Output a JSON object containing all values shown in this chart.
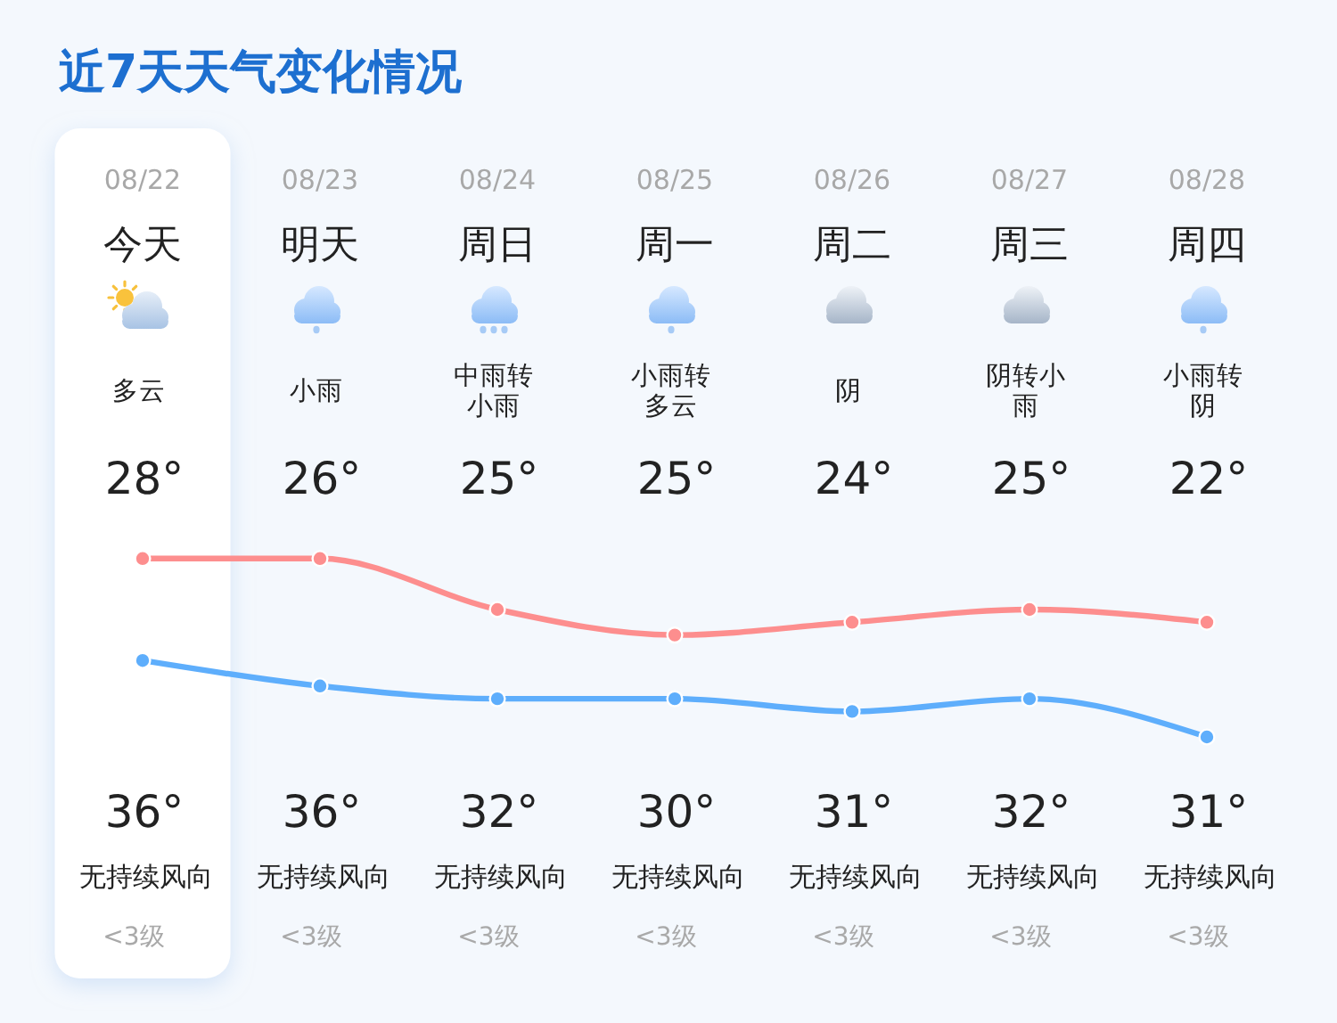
{
  "chart_data": {
    "type": "line",
    "title": "近7天天气变化情况",
    "categories": [
      "08/22",
      "08/23",
      "08/24",
      "08/25",
      "08/26",
      "08/27",
      "08/28"
    ],
    "series": [
      {
        "color": "#5eaefc",
        "values": [
          28,
          26,
          25,
          25,
          24,
          25,
          22
        ],
        "value_labels": [
          "28°",
          "26°",
          "25°",
          "25°",
          "24°",
          "25°",
          "22°"
        ]
      },
      {
        "color": "#fd8e8e",
        "values": [
          36,
          36,
          32,
          30,
          31,
          32,
          31
        ],
        "value_labels": [
          "36°",
          "36°",
          "32°",
          "30°",
          "31°",
          "32°",
          "31°"
        ]
      }
    ],
    "tick_labels": "x",
    "marker": "circle",
    "line_style": "solid",
    "bands": [
      {
        "axis": "x",
        "from": "08/22",
        "to": "08/22",
        "color": "#ffffff"
      }
    ],
    "annotations": [
      "今天",
      "明天",
      "周日",
      "周一",
      "周二",
      "周三",
      "周四",
      "多云",
      "小雨",
      "中雨转小雨",
      "小雨转多云",
      "阴",
      "阴转小雨",
      "小雨转阴",
      "无持续风向",
      "无持续风向",
      "无持续风向",
      "无持续风向",
      "无持续风向",
      "无持续风向",
      "无持续风向",
      "<3级",
      "<3级",
      "<3级",
      "<3级",
      "<3级",
      "<3级",
      "<3级"
    ]
  }
}
